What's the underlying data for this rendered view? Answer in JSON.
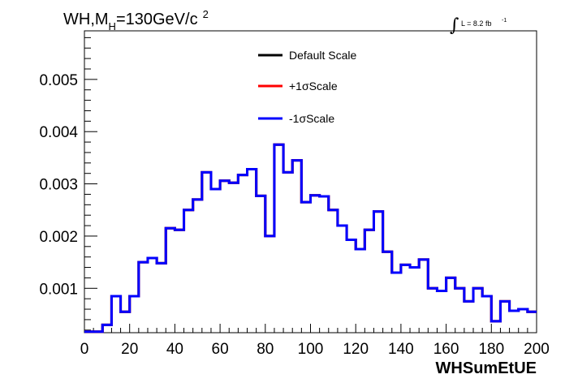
{
  "chart_data": {
    "type": "line",
    "title": {
      "main": "WH,M",
      "subscript": "H",
      "rest": "=130GeV/c",
      "superscript": "2"
    },
    "lumi": {
      "integral_sign": "∫",
      "text": "L = 8.2 fb",
      "superscript": "-1"
    },
    "xlabel": "WHSumEtUE",
    "ylabel": "",
    "xlim": [
      0,
      200
    ],
    "ylim": [
      0.00015,
      0.00593
    ],
    "x_ticks": [
      0,
      20,
      40,
      60,
      80,
      100,
      120,
      140,
      160,
      180,
      200
    ],
    "x_tick_labels": [
      "0",
      "20",
      "40",
      "60",
      "80",
      "100",
      "120",
      "140",
      "160",
      "180",
      "200"
    ],
    "y_ticks": [
      0.001,
      0.002,
      0.003,
      0.004,
      0.005
    ],
    "y_tick_labels": [
      "0.001",
      "0.002",
      "0.003",
      "0.004",
      "0.005"
    ],
    "grid": false,
    "legend_position": "top-center",
    "bin_edges": [
      0,
      4,
      8,
      12,
      16,
      20,
      24,
      28,
      32,
      36,
      40,
      44,
      48,
      52,
      56,
      60,
      64,
      68,
      72,
      76,
      80,
      84,
      88,
      92,
      96,
      100,
      104,
      108,
      112,
      116,
      120,
      124,
      128,
      132,
      136,
      140,
      144,
      148,
      152,
      156,
      160,
      164,
      168,
      172,
      176,
      180,
      184,
      188,
      192,
      196,
      200
    ],
    "series": [
      {
        "name": "Default Scale",
        "color": "#000000",
        "values": [
          0.00017,
          0.00017,
          0.0003,
          0.00085,
          0.00055,
          0.00085,
          0.0015,
          0.00158,
          0.00148,
          0.00215,
          0.00212,
          0.0025,
          0.0027,
          0.00322,
          0.0029,
          0.00306,
          0.00302,
          0.00317,
          0.00328,
          0.00277,
          0.002,
          0.00375,
          0.00322,
          0.00345,
          0.00265,
          0.00278,
          0.00276,
          0.0025,
          0.0022,
          0.00193,
          0.00175,
          0.00212,
          0.00247,
          0.0017,
          0.0013,
          0.00145,
          0.0014,
          0.00155,
          0.001,
          0.00095,
          0.0012,
          0.001,
          0.00075,
          0.001,
          0.00085,
          0.00037,
          0.00075,
          0.00057,
          0.0006,
          0.00055
        ]
      },
      {
        "name": "+1σScale",
        "color": "#ff0000",
        "values": [
          0.00017,
          0.00017,
          0.0003,
          0.00085,
          0.00055,
          0.00085,
          0.0015,
          0.00158,
          0.00148,
          0.00215,
          0.00212,
          0.0025,
          0.0027,
          0.00322,
          0.0029,
          0.00306,
          0.00302,
          0.00317,
          0.00328,
          0.00277,
          0.002,
          0.00375,
          0.00322,
          0.00345,
          0.00265,
          0.00278,
          0.00276,
          0.0025,
          0.0022,
          0.00193,
          0.00175,
          0.00212,
          0.00247,
          0.0017,
          0.0013,
          0.00145,
          0.0014,
          0.00155,
          0.001,
          0.00095,
          0.0012,
          0.001,
          0.00075,
          0.001,
          0.00085,
          0.00037,
          0.00075,
          0.00057,
          0.0006,
          0.00055
        ]
      },
      {
        "name": "-1σScale",
        "color": "#0000ff",
        "values": [
          0.00017,
          0.00017,
          0.0003,
          0.00085,
          0.00055,
          0.00085,
          0.0015,
          0.00158,
          0.00148,
          0.00215,
          0.00212,
          0.0025,
          0.0027,
          0.00322,
          0.0029,
          0.00306,
          0.00302,
          0.00317,
          0.00328,
          0.00277,
          0.002,
          0.00375,
          0.00322,
          0.00345,
          0.00265,
          0.00278,
          0.00276,
          0.0025,
          0.0022,
          0.00193,
          0.00175,
          0.00212,
          0.00247,
          0.0017,
          0.0013,
          0.00145,
          0.0014,
          0.00155,
          0.001,
          0.00095,
          0.0012,
          0.001,
          0.00075,
          0.001,
          0.00085,
          0.00037,
          0.00075,
          0.00057,
          0.0006,
          0.00055
        ]
      }
    ]
  }
}
